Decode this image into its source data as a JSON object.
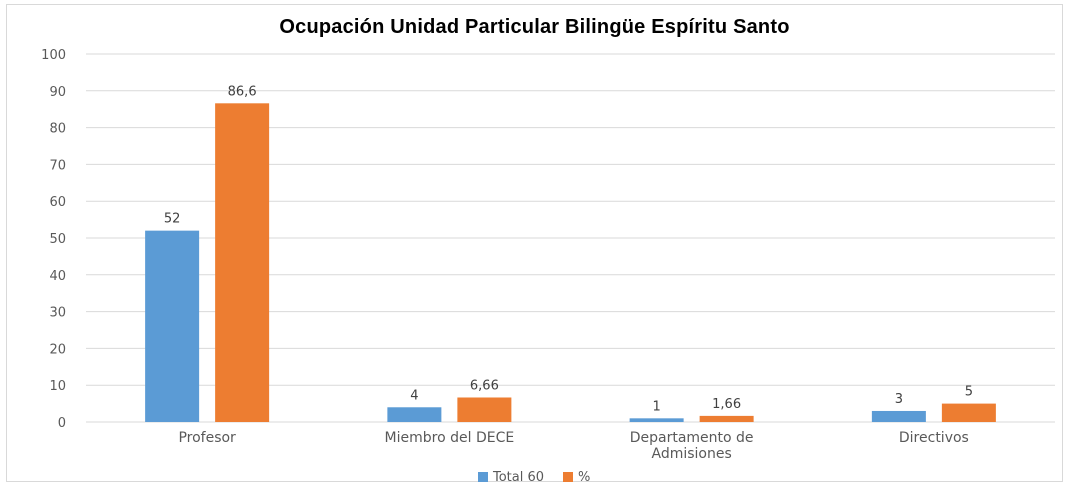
{
  "chart_data": {
    "type": "bar",
    "title": "Ocupación Unidad Particular Bilingüe Espíritu Santo",
    "categories": [
      [
        "Profesor"
      ],
      [
        "Miembro del DECE"
      ],
      [
        "Departamento de",
        "Admisiones"
      ],
      [
        "Directivos"
      ]
    ],
    "series": [
      {
        "name": "Total 60",
        "values": [
          52,
          4,
          1,
          3
        ],
        "labels": [
          "52",
          "4",
          "1",
          "3"
        ],
        "color": "#5b9bd5"
      },
      {
        "name": "%",
        "values": [
          86.6,
          6.66,
          1.66,
          5
        ],
        "labels": [
          "86,6",
          "6,66",
          "1,66",
          "5"
        ],
        "color": "#ed7d31"
      }
    ],
    "ylim": [
      0,
      100
    ],
    "yticks": [
      0,
      10,
      20,
      30,
      40,
      50,
      60,
      70,
      80,
      90,
      100
    ],
    "grid": true,
    "gridColor": "#d9d9d9",
    "legend_position": "bottom"
  }
}
